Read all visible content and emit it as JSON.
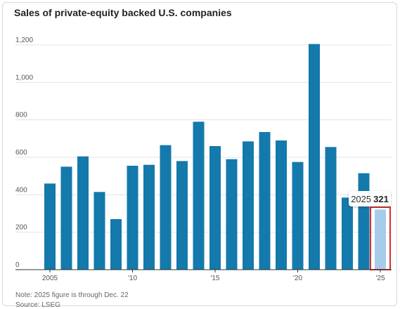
{
  "chart_data": {
    "type": "bar",
    "title": "Sales of private-equity backed U.S. companies",
    "years": [
      2005,
      2006,
      2007,
      2008,
      2009,
      2010,
      2011,
      2012,
      2013,
      2014,
      2015,
      2016,
      2017,
      2018,
      2019,
      2020,
      2021,
      2022,
      2023,
      2024,
      2025
    ],
    "values": [
      460,
      550,
      605,
      415,
      270,
      555,
      560,
      665,
      580,
      790,
      660,
      590,
      685,
      735,
      690,
      575,
      1205,
      655,
      385,
      515,
      321
    ],
    "ylim": [
      0,
      1300
    ],
    "yticks": [
      0,
      200,
      400,
      600,
      800,
      1000,
      1200
    ],
    "ytick_labels": [
      "0",
      "200",
      "400",
      "600",
      "800",
      "1,000",
      "1,200"
    ],
    "xticks": [
      2005,
      2010,
      2015,
      2020,
      2025
    ],
    "xtick_labels": [
      "2005",
      "'10",
      "'15",
      "'20",
      "'25"
    ],
    "grid": "horizontal",
    "highlight": {
      "year": 2025,
      "year_label": "2025",
      "value_label": "321"
    },
    "colors": {
      "bar": "#1479ab",
      "highlight_bar": "#a5cdea",
      "highlight_border": "#d32f2f",
      "grid": "#e3e3e3"
    }
  },
  "note": "Note: 2025 figure is through Dec. 22",
  "source": "Source: LSEG"
}
